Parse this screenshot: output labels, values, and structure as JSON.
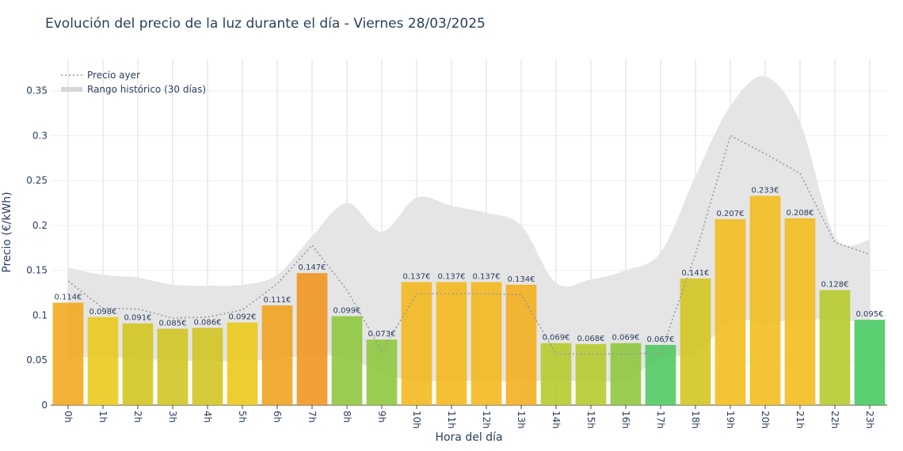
{
  "chart_data": {
    "type": "bar",
    "title": "Evolución del precio de la luz durante el día - Viernes 28/03/2025",
    "xlabel": "Hora del día",
    "ylabel": "Precio (€/kWh)",
    "ylim": [
      0,
      0.385
    ],
    "yticks": [
      0,
      0.05,
      0.1,
      0.15,
      0.2,
      0.25,
      0.3,
      0.35
    ],
    "ytick_labels": [
      "0",
      "0.05",
      "0.1",
      "0.15",
      "0.2",
      "0.25",
      "0.3",
      "0.35"
    ],
    "grid": true,
    "legend_position": "top-left",
    "categories": [
      "0h",
      "1h",
      "2h",
      "3h",
      "4h",
      "5h",
      "6h",
      "7h",
      "8h",
      "9h",
      "10h",
      "11h",
      "12h",
      "13h",
      "14h",
      "15h",
      "16h",
      "17h",
      "18h",
      "19h",
      "20h",
      "21h",
      "22h",
      "23h"
    ],
    "series": [
      {
        "type": "bar",
        "values": [
          0.114,
          0.098,
          0.091,
          0.085,
          0.086,
          0.092,
          0.111,
          0.147,
          0.099,
          0.073,
          0.137,
          0.137,
          0.137,
          0.134,
          0.069,
          0.068,
          0.069,
          0.067,
          0.141,
          0.207,
          0.233,
          0.208,
          0.128,
          0.095
        ],
        "labels": [
          "0.114€",
          "0.098€",
          "0.091€",
          "0.085€",
          "0.086€",
          "0.092€",
          "0.111€",
          "0.147€",
          "0.099€",
          "0.073€",
          "0.137€",
          "0.137€",
          "0.137€",
          "0.134€",
          "0.069€",
          "0.068€",
          "0.069€",
          "0.067€",
          "0.141€",
          "0.207€",
          "0.233€",
          "0.208€",
          "0.128€",
          "0.095€"
        ],
        "colors": [
          "#f0a91a",
          "#ecc817",
          "#d2c51d",
          "#d0c41e",
          "#d0c41e",
          "#ecc817",
          "#f0a21a",
          "#f0931c",
          "#8cc63a",
          "#8cc63a",
          "#f5b71a",
          "#f5b71a",
          "#f5b71a",
          "#f3ad1a",
          "#b6c82a",
          "#b6c82a",
          "#8cc63a",
          "#4cc85e",
          "#d2c51d",
          "#f2bb1a",
          "#f2bb1a",
          "#f2bb1a",
          "#b6c82a",
          "#46c860"
        ]
      },
      {
        "name": "Precio ayer",
        "type": "line",
        "color": "#999999",
        "values": [
          0.138,
          0.108,
          0.107,
          0.097,
          0.098,
          0.106,
          0.135,
          0.178,
          0.128,
          0.06,
          0.124,
          0.124,
          0.124,
          0.123,
          0.057,
          0.057,
          0.057,
          0.058,
          0.168,
          0.3,
          0.28,
          0.258,
          0.181,
          0.168
        ]
      },
      {
        "name": "Rango histórico (30 días)",
        "type": "area",
        "color": "#e5e5e5",
        "upper": [
          0.153,
          0.145,
          0.142,
          0.134,
          0.133,
          0.134,
          0.145,
          0.188,
          0.225,
          0.193,
          0.231,
          0.222,
          0.214,
          0.2,
          0.136,
          0.14,
          0.15,
          0.17,
          0.255,
          0.333,
          0.366,
          0.315,
          0.188,
          0.184
        ],
        "lower": [
          0.053,
          0.053,
          0.052,
          0.05,
          0.049,
          0.049,
          0.052,
          0.055,
          0.053,
          0.035,
          0.027,
          0.027,
          0.027,
          0.027,
          0.027,
          0.027,
          0.028,
          0.052,
          0.058,
          0.093,
          0.092,
          0.095,
          0.095,
          0.092
        ]
      }
    ]
  }
}
